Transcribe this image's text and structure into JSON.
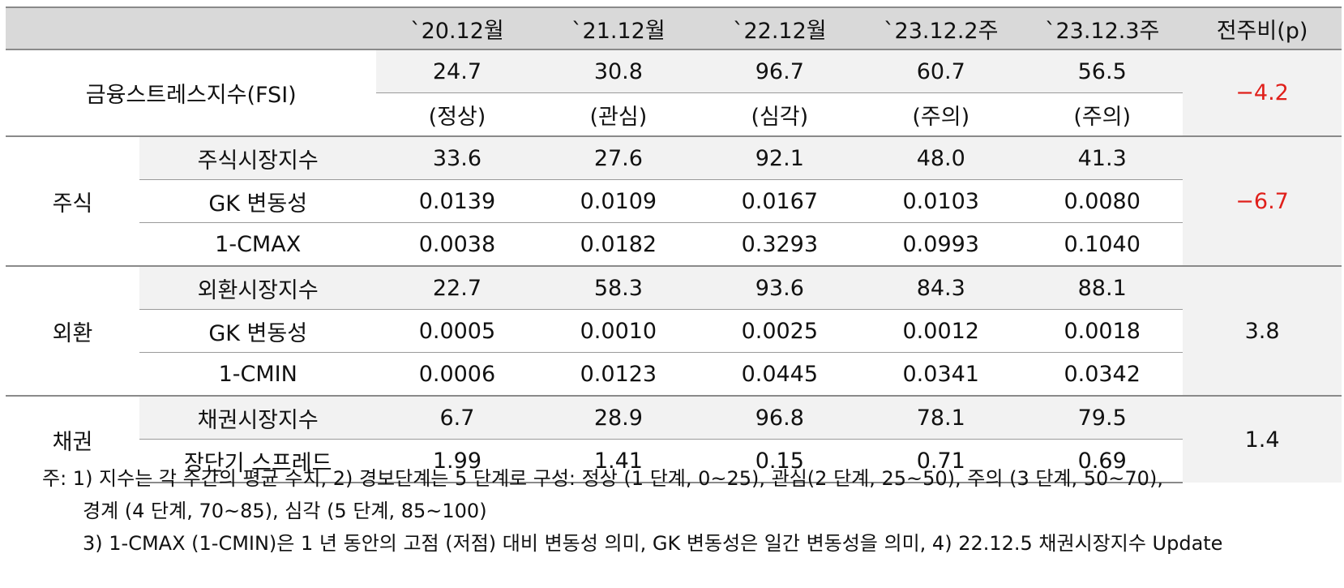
{
  "header": {
    "col_date_1": "`20.12월",
    "col_date_2": "`21.12월",
    "col_date_3": "`22.12월",
    "col_date_4": "`23.12.2주",
    "col_date_5": "`23.12.3주",
    "col_change": "전주비(p)"
  },
  "fsi": {
    "label": "금융스트레스지수(FSI)",
    "values": [
      "24.7",
      "30.8",
      "96.7",
      "60.7",
      "56.5"
    ],
    "status": [
      "(정상)",
      "(관심)",
      "(심각)",
      "(주의)",
      "(주의)"
    ],
    "change": "−4.2"
  },
  "stock": {
    "group": "주식",
    "change": "−6.7",
    "rows": [
      {
        "label": "주식시장지수",
        "values": [
          "33.6",
          "27.6",
          "92.1",
          "48.0",
          "41.3"
        ]
      },
      {
        "label": "GK 변동성",
        "values": [
          "0.0139",
          "0.0109",
          "0.0167",
          "0.0103",
          "0.0080"
        ]
      },
      {
        "label": "1-CMAX",
        "values": [
          "0.0038",
          "0.0182",
          "0.3293",
          "0.0993",
          "0.1040"
        ]
      }
    ]
  },
  "fx": {
    "group": "외환",
    "change": "3.8",
    "rows": [
      {
        "label": "외환시장지수",
        "values": [
          "22.7",
          "58.3",
          "93.6",
          "84.3",
          "88.1"
        ]
      },
      {
        "label": "GK 변동성",
        "values": [
          "0.0005",
          "0.0010",
          "0.0025",
          "0.0012",
          "0.0018"
        ]
      },
      {
        "label": "1-CMIN",
        "values": [
          "0.0006",
          "0.0123",
          "0.0445",
          "0.0341",
          "0.0342"
        ]
      }
    ]
  },
  "bond": {
    "group": "채권",
    "change": "1.4",
    "rows": [
      {
        "label": "채권시장지수",
        "values": [
          "6.7",
          "28.9",
          "96.8",
          "78.1",
          "79.5"
        ]
      },
      {
        "label": "장단기 스프레드",
        "values": [
          "1.99",
          "1.41",
          "0.15",
          "0.71",
          "0.69"
        ]
      }
    ]
  },
  "notes": {
    "line1": "주: 1) 지수는 각 주간의 평균 수치, 2) 경보단계는 5 단계로 구성: 정상 (1 단계, 0~25), 관심(2 단계, 25~50), 주의 (3 단계, 50~70),",
    "line2": "경계 (4 단계, 70~85), 심각 (5 단계, 85~100)",
    "line3": "3) 1-CMAX (1-CMIN)은 1 년 동안의 고점 (저점) 대비 변동성 의미, GK 변동성은 일간 변동성을 의미, 4) 22.12.5 채권시장지수 Update"
  }
}
